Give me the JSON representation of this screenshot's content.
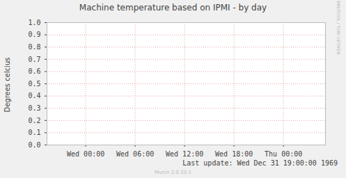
{
  "chart_data": {
    "type": "line",
    "title": "Machine temperature based on IPMI - by day",
    "y_label": "Degrees celcius",
    "xlim": [
      -4.7,
      29.1
    ],
    "xticks": [
      {
        "value": 0,
        "label": "Wed 00:00"
      },
      {
        "value": 6,
        "label": "Wed 06:00"
      },
      {
        "value": 12,
        "label": "Wed 12:00"
      },
      {
        "value": 18,
        "label": "Wed 18:00"
      },
      {
        "value": 24,
        "label": "Thu 00:00"
      }
    ],
    "ylim": [
      0,
      1
    ],
    "yticks": [
      {
        "value": 0,
        "label": "0.0"
      },
      {
        "value": 0.1,
        "label": "0.1"
      },
      {
        "value": 0.2,
        "label": "0.2"
      },
      {
        "value": 0.3,
        "label": "0.3"
      },
      {
        "value": 0.4,
        "label": "0.4"
      },
      {
        "value": 0.5,
        "label": "0.5"
      },
      {
        "value": 0.6,
        "label": "0.6"
      },
      {
        "value": 0.7,
        "label": "0.7"
      },
      {
        "value": 0.8,
        "label": "0.8"
      },
      {
        "value": 0.9,
        "label": "0.9"
      },
      {
        "value": 1,
        "label": "1.0"
      }
    ],
    "grid": true,
    "series": [],
    "annotations": [
      "Last update: Wed Dec 31 19:00:00 1969",
      "Munin 2.0.33-1",
      "RRDTOOL / TOBI OETIKER"
    ]
  }
}
